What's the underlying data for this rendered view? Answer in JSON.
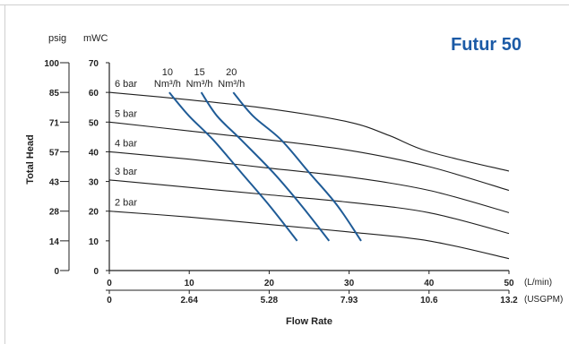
{
  "chart_data": {
    "type": "line",
    "title": "Futur 50",
    "xlabel": "Flow Rate",
    "ylabel": "Total Head",
    "x_units": "(L/min)",
    "x2_units": "(USGPM)",
    "y_left_units": "psig",
    "y_right_units": "mWC",
    "xlim": [
      0,
      50
    ],
    "ylim": [
      0,
      70
    ],
    "x_ticks": [
      "0",
      "10",
      "20",
      "30",
      "40",
      "50"
    ],
    "x2_ticks": [
      "0",
      "2.64",
      "5.28",
      "7.93",
      "10.6",
      "13.2"
    ],
    "y_ticks_mwc": [
      "0",
      "10",
      "20",
      "30",
      "40",
      "50",
      "60",
      "70"
    ],
    "y_ticks_psig": [
      "0",
      "14",
      "28",
      "43",
      "57",
      "71",
      "85",
      "100"
    ],
    "pressure_series": [
      {
        "name": "6 bar",
        "x": [
          0,
          10,
          20,
          30,
          35,
          40,
          50
        ],
        "y": [
          60,
          57.5,
          54.5,
          50,
          45.5,
          40,
          33.5
        ]
      },
      {
        "name": "5 bar",
        "x": [
          0,
          10,
          20,
          30,
          40,
          50
        ],
        "y": [
          50,
          47,
          44,
          40.5,
          35,
          27
        ]
      },
      {
        "name": "4 bar",
        "x": [
          0,
          10,
          20,
          30,
          40,
          50
        ],
        "y": [
          40,
          37.5,
          34.5,
          31.5,
          27,
          19.5
        ]
      },
      {
        "name": "3 bar",
        "x": [
          0,
          10,
          20,
          30,
          40,
          50
        ],
        "y": [
          30.5,
          28,
          25.5,
          23,
          19.5,
          12.5
        ]
      },
      {
        "name": "2 bar",
        "x": [
          0,
          10,
          20,
          30,
          40,
          50
        ],
        "y": [
          20,
          18,
          15.5,
          13,
          10,
          4
        ]
      }
    ],
    "air_series": [
      {
        "name": "10 Nm³/h",
        "line1": "10",
        "line2": "Nm³/h",
        "x": [
          7.5,
          10,
          13,
          16.5,
          20,
          23.5
        ],
        "y": [
          60,
          52,
          44,
          33,
          22,
          10
        ]
      },
      {
        "name": "15 Nm³/h",
        "line1": "15",
        "line2": "Nm³/h",
        "x": [
          11.5,
          13.5,
          16.5,
          20.5,
          24,
          27.5
        ],
        "y": [
          60,
          52,
          44,
          33,
          22,
          10
        ]
      },
      {
        "name": "20 Nm³/h",
        "line1": "20",
        "line2": "Nm³/h",
        "x": [
          15.5,
          18,
          21.5,
          25,
          28.5,
          31.5
        ],
        "y": [
          60,
          52,
          44,
          33,
          22,
          10
        ]
      }
    ],
    "line_color": "#1e1e1e",
    "air_color": "#1f5b96",
    "brand_color": "#1b5aa6",
    "grid": false
  }
}
